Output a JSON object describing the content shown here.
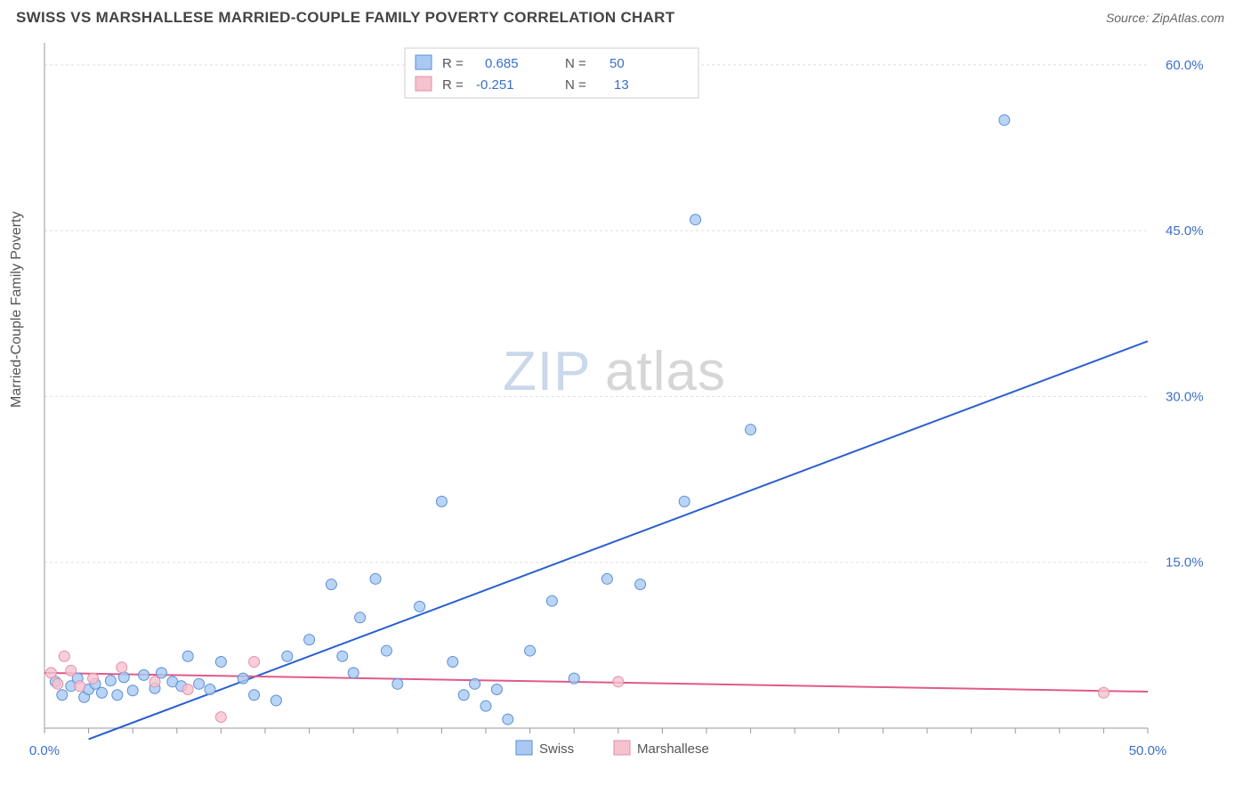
{
  "header": {
    "title": "SWISS VS MARSHALLESE MARRIED-COUPLE FAMILY POVERTY CORRELATION CHART",
    "source": "Source: ZipAtlas.com"
  },
  "ylabel": "Married-Couple Family Poverty",
  "watermark": {
    "part1": "ZIP",
    "part2": "atlas"
  },
  "chart": {
    "type": "scatter",
    "background_color": "#ffffff",
    "grid_color": "#dddddd",
    "axis_color": "#999999",
    "tick_label_color": "#3b6fc9",
    "xlim": [
      0,
      50
    ],
    "ylim": [
      0,
      62
    ],
    "x_ticks_minor_step": 2,
    "y_gridlines": [
      15,
      30,
      45,
      60
    ],
    "y_tick_labels": [
      "15.0%",
      "30.0%",
      "45.0%",
      "60.0%"
    ],
    "x_tick_labels": {
      "0": "0.0%",
      "50": "50.0%"
    },
    "marker_radius": 6,
    "series": [
      {
        "name": "Swiss",
        "color_fill": "#a9c9f2",
        "color_stroke": "#5b8fd6",
        "line_color": "#2a5fd0",
        "r": "0.685",
        "n": "50",
        "regression": {
          "x1": 2,
          "y1": -1,
          "x2": 50,
          "y2": 35
        },
        "points": [
          [
            0.5,
            4.2
          ],
          [
            0.8,
            3.0
          ],
          [
            1.2,
            3.8
          ],
          [
            1.5,
            4.5
          ],
          [
            1.8,
            2.8
          ],
          [
            2.0,
            3.5
          ],
          [
            2.3,
            4.0
          ],
          [
            2.6,
            3.2
          ],
          [
            3.0,
            4.3
          ],
          [
            3.3,
            3.0
          ],
          [
            3.6,
            4.6
          ],
          [
            4.0,
            3.4
          ],
          [
            4.5,
            4.8
          ],
          [
            5.0,
            3.6
          ],
          [
            5.3,
            5.0
          ],
          [
            5.8,
            4.2
          ],
          [
            6.2,
            3.8
          ],
          [
            6.5,
            6.5
          ],
          [
            7.0,
            4.0
          ],
          [
            7.5,
            3.5
          ],
          [
            8.0,
            6.0
          ],
          [
            9.0,
            4.5
          ],
          [
            9.5,
            3.0
          ],
          [
            10.5,
            2.5
          ],
          [
            11.0,
            6.5
          ],
          [
            12.0,
            8.0
          ],
          [
            13.0,
            13.0
          ],
          [
            13.5,
            6.5
          ],
          [
            14.0,
            5.0
          ],
          [
            14.3,
            10.0
          ],
          [
            15.0,
            13.5
          ],
          [
            15.5,
            7.0
          ],
          [
            16.0,
            4.0
          ],
          [
            17.0,
            11.0
          ],
          [
            18.0,
            20.5
          ],
          [
            18.5,
            6.0
          ],
          [
            19.0,
            3.0
          ],
          [
            19.5,
            4.0
          ],
          [
            20.0,
            2.0
          ],
          [
            20.5,
            3.5
          ],
          [
            21.0,
            0.8
          ],
          [
            22.0,
            7.0
          ],
          [
            23.0,
            11.5
          ],
          [
            24.0,
            4.5
          ],
          [
            25.5,
            13.5
          ],
          [
            27.0,
            13.0
          ],
          [
            29.0,
            20.5
          ],
          [
            29.5,
            46.0
          ],
          [
            32.0,
            27.0
          ],
          [
            43.5,
            55.0
          ]
        ]
      },
      {
        "name": "Marshallese",
        "color_fill": "#f5c2cf",
        "color_stroke": "#e48fa8",
        "line_color": "#e05a8a",
        "r": "-0.251",
        "n": "13",
        "regression": {
          "x1": 0,
          "y1": 5.0,
          "x2": 50,
          "y2": 3.3
        },
        "points": [
          [
            0.3,
            5.0
          ],
          [
            0.6,
            4.0
          ],
          [
            0.9,
            6.5
          ],
          [
            1.2,
            5.2
          ],
          [
            1.6,
            3.8
          ],
          [
            2.2,
            4.5
          ],
          [
            3.5,
            5.5
          ],
          [
            5.0,
            4.2
          ],
          [
            6.5,
            3.5
          ],
          [
            8.0,
            1.0
          ],
          [
            9.5,
            6.0
          ],
          [
            26.0,
            4.2
          ],
          [
            48.0,
            3.2
          ]
        ]
      }
    ]
  },
  "top_legend": {
    "r_label": "R =",
    "n_label": "N ="
  },
  "bottom_legend": {
    "items": [
      "Swiss",
      "Marshallese"
    ]
  }
}
